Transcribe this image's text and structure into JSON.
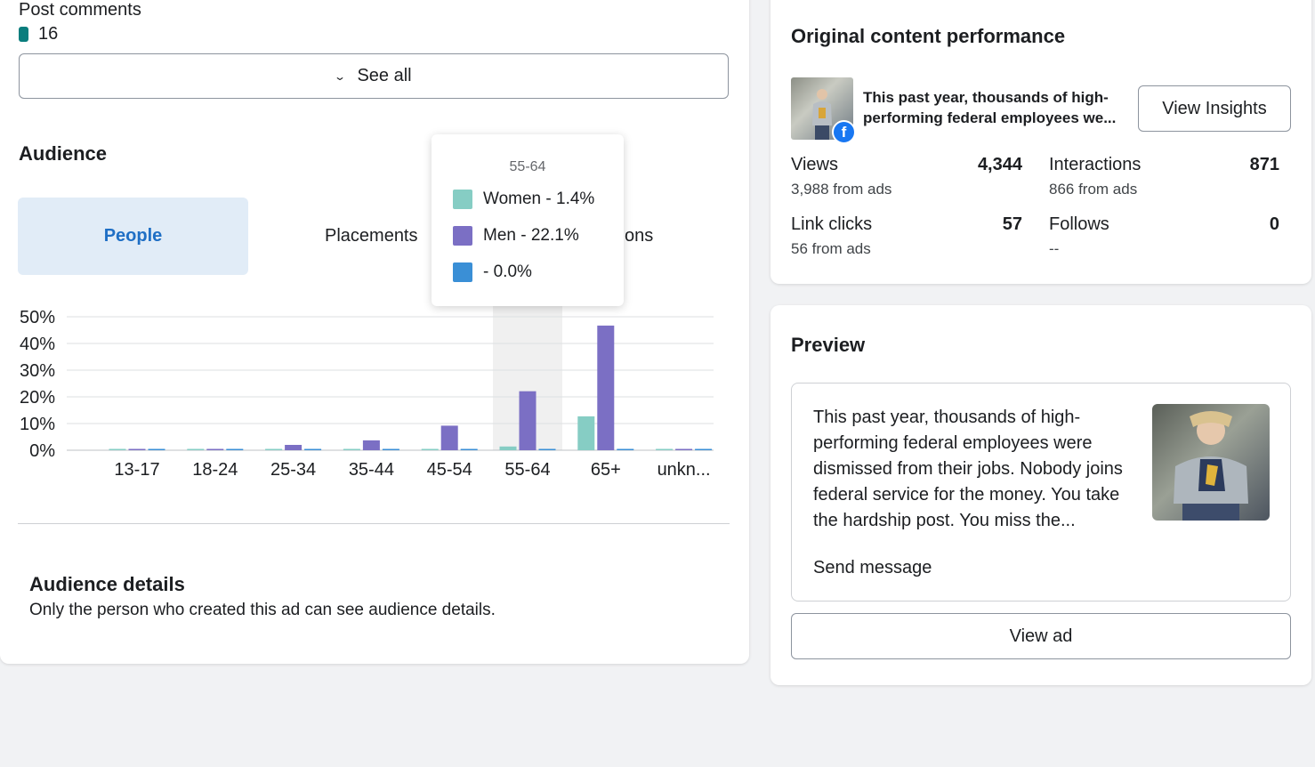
{
  "post_comments": {
    "label": "Post comments",
    "count": "16",
    "swatch_color": "#0a7d7d"
  },
  "see_all": {
    "label": "See all",
    "icon": "chevron-down-icon"
  },
  "audience": {
    "title": "Audience",
    "tabs": [
      {
        "label": "People",
        "active": true
      },
      {
        "label": "Placements",
        "active": false
      },
      {
        "label": "ons",
        "active": false
      }
    ]
  },
  "tooltip": {
    "title": "55-64",
    "rows": [
      {
        "label": "Women - 1.4%",
        "color": "#86cdc4"
      },
      {
        "label": "Men - 22.1%",
        "color": "#7b6fc4"
      },
      {
        "label": "- 0.0%",
        "color": "#3a8fd6"
      }
    ]
  },
  "chart_data": {
    "type": "bar",
    "categories": [
      "13-17",
      "18-24",
      "25-34",
      "35-44",
      "45-54",
      "55-64",
      "65+",
      "unkn..."
    ],
    "series": [
      {
        "name": "Women",
        "values": [
          0.1,
          0.1,
          0.1,
          0.1,
          0.4,
          1.4,
          12.7,
          0.1
        ],
        "color": "#86cdc4"
      },
      {
        "name": "Men",
        "values": [
          0.1,
          0.1,
          2.0,
          3.7,
          9.2,
          22.1,
          46.7,
          0.1
        ],
        "color": "#7b6fc4"
      },
      {
        "name": "",
        "values": [
          0.1,
          0.1,
          0.1,
          0.1,
          0.1,
          0.0,
          0.1,
          0.1
        ],
        "color": "#3a8fd6"
      }
    ],
    "y_ticks": [
      "50%",
      "40%",
      "30%",
      "20%",
      "10%",
      "0%"
    ],
    "ylim": [
      0,
      50
    ],
    "highlighted_category": "55-64",
    "grid": true
  },
  "audience_details": {
    "title": "Audience details",
    "text": "Only the person who created this ad can see audience details."
  },
  "ocp": {
    "title": "Original content performance",
    "post_text": "This past year, thousands of high-performing federal employees we...",
    "view_insights": "View Insights",
    "metrics": [
      {
        "label": "Views",
        "value": "4,344",
        "sub": "3,988 from ads"
      },
      {
        "label": "Interactions",
        "value": "871",
        "sub": "866 from ads"
      },
      {
        "label": "Link clicks",
        "value": "57",
        "sub": "56 from ads"
      },
      {
        "label": "Follows",
        "value": "0",
        "sub": "--"
      }
    ]
  },
  "preview": {
    "title": "Preview",
    "text": "This past year, thousands of high-performing federal employees were dismissed from their jobs. Nobody joins federal service for the money. You take the hardship post. You miss the...",
    "cta": "Send message",
    "view_ad": "View ad"
  }
}
